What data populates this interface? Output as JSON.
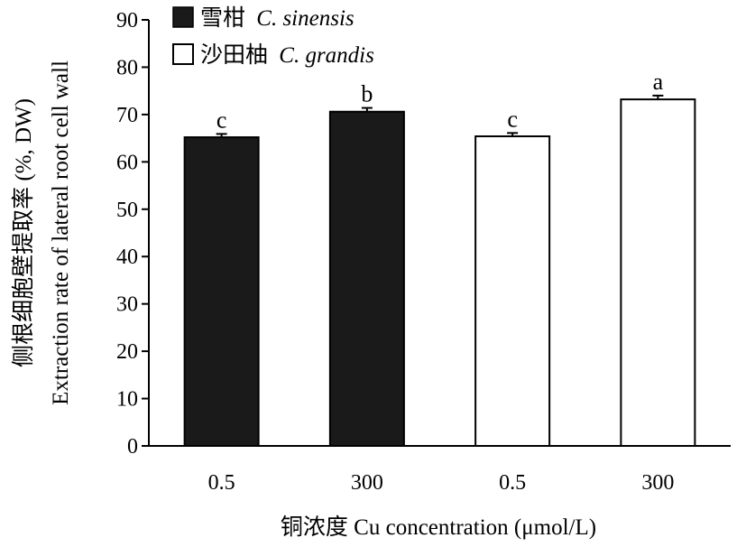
{
  "chart_data": {
    "type": "bar",
    "ylabel": [
      "侧根细胞壁提取率 (%, DW)",
      "Extraction rate of lateral root cell wall"
    ],
    "xlabel": "铜浓度 Cu concentration (μmol/L)",
    "ylim": [
      0,
      90
    ],
    "yticks": [
      0,
      10,
      20,
      30,
      40,
      50,
      60,
      70,
      80,
      90
    ],
    "categories": [
      "0.5",
      "300",
      "0.5",
      "300"
    ],
    "bars": [
      {
        "category": "0.5",
        "series": "雪柑 C. sinensis",
        "value": 65.2,
        "error": 0.7,
        "label": "c",
        "fill": "#1a1a1a"
      },
      {
        "category": "300",
        "series": "雪柑 C. sinensis",
        "value": 70.6,
        "error": 0.8,
        "label": "b",
        "fill": "#1a1a1a"
      },
      {
        "category": "0.5",
        "series": "沙田柚 C. grandis",
        "value": 65.4,
        "error": 0.7,
        "label": "c",
        "fill": "#ffffff"
      },
      {
        "category": "300",
        "series": "沙田柚 C. grandis",
        "value": 73.2,
        "error": 0.8,
        "label": "a",
        "fill": "#ffffff"
      }
    ],
    "legend": [
      {
        "zh": "雪柑",
        "sci": "C. sinensis",
        "fill": "#1a1a1a"
      },
      {
        "zh": "沙田柚",
        "sci": "C. grandis",
        "fill": "#ffffff"
      }
    ],
    "legend_position": "top-left",
    "grid": false
  }
}
